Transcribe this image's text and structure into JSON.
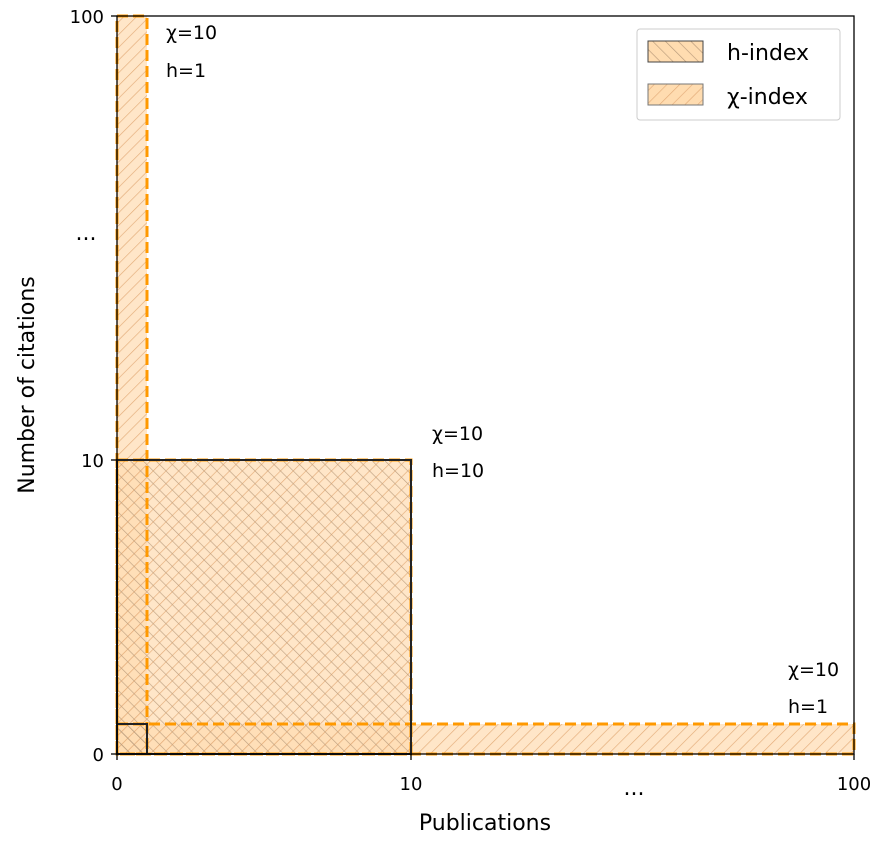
{
  "chart_data": {
    "type": "area",
    "title": "",
    "xlabel": "Publications",
    "ylabel": "Number of citations",
    "x_ticks": [
      "0",
      "10",
      "100"
    ],
    "y_ticks": [
      "0",
      "10",
      "100"
    ],
    "x_ellipsis": "...",
    "y_ellipsis": "...",
    "legend_position": "top-right",
    "grid": false,
    "scale": "piecewise (0-10 and 10-100 segments)",
    "series": [
      {
        "name": "h-index",
        "style": "back-hatch, black outline",
        "regions": [
          {
            "pubs": 10,
            "citations": 10
          },
          {
            "pubs": 1,
            "citations": 1
          }
        ]
      },
      {
        "name": "χ-index",
        "style": "forward-hatch, orange dashed outline",
        "regions": [
          {
            "pubs": 1,
            "citations": 100
          },
          {
            "pubs": 10,
            "citations": 10
          },
          {
            "pubs": 100,
            "citations": 1
          }
        ]
      }
    ],
    "annotations": [
      {
        "chi_text": "χ=10",
        "h_text": "h=1",
        "at": "top"
      },
      {
        "chi_text": "χ=10",
        "h_text": "h=10",
        "at": "middle"
      },
      {
        "chi_text": "χ=10",
        "h_text": "h=1",
        "at": "right"
      }
    ],
    "colors": {
      "fill": "#ffdcb0",
      "chi_edge": "#ff9900",
      "h_edge": "#222222",
      "chi_hatch": "#e7b07a",
      "h_hatch": "#bfa280"
    }
  }
}
